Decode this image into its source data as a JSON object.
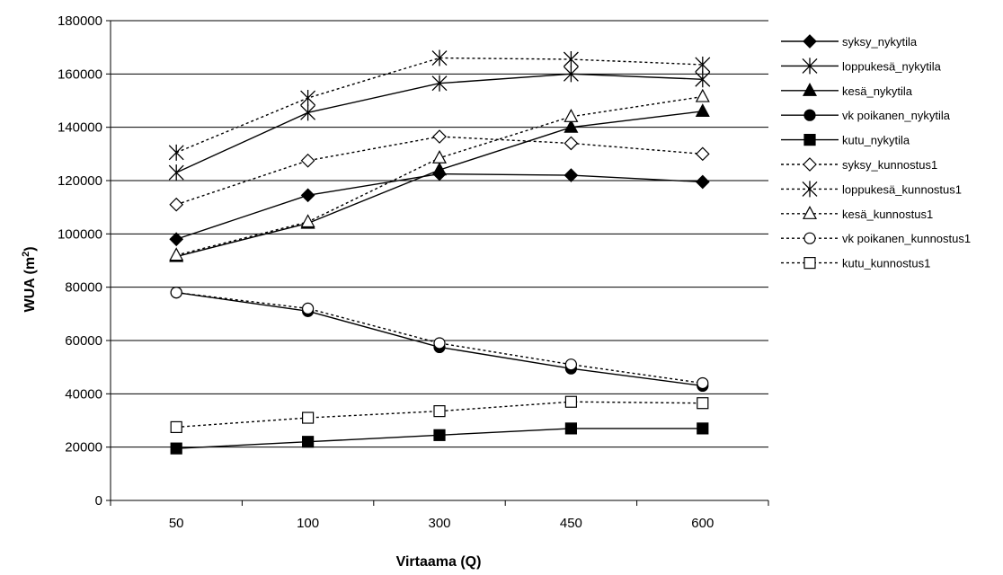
{
  "chart_data": {
    "type": "line",
    "xlabel": "Virtaama (Q)",
    "ylabel": "WUA (m",
    "ylabel_sup": "2",
    "ylabel_close": ")",
    "categories": [
      "50",
      "100",
      "300",
      "450",
      "600"
    ],
    "ylim": [
      0,
      180000
    ],
    "ytick_step": 20000,
    "yticks": [
      "0",
      "20000",
      "40000",
      "60000",
      "80000",
      "100000",
      "120000",
      "140000",
      "160000",
      "180000"
    ],
    "grid": "horizontal",
    "legend_position": "right",
    "series": [
      {
        "name": "syksy_nykytila",
        "marker": "diamond-filled",
        "dash": "solid",
        "values": [
          98000,
          114500,
          122500,
          122000,
          119500
        ]
      },
      {
        "name": "loppukesä_nykytila",
        "marker": "star",
        "dash": "solid",
        "values": [
          123000,
          145500,
          156500,
          160000,
          158000
        ]
      },
      {
        "name": "kesä_nykytila",
        "marker": "triangle-filled",
        "dash": "solid",
        "values": [
          91500,
          104000,
          124000,
          140000,
          146000
        ]
      },
      {
        "name": "vk poikanen_nykytila",
        "marker": "circle-filled",
        "dash": "solid",
        "values": [
          78000,
          71000,
          57500,
          49500,
          43000
        ]
      },
      {
        "name": "kutu_nykytila",
        "marker": "square-filled",
        "dash": "solid",
        "values": [
          19500,
          22000,
          24500,
          27000,
          27000
        ]
      },
      {
        "name": "syksy_kunnostus1",
        "marker": "diamond-open",
        "dash": "dotted",
        "values": [
          111000,
          127500,
          136500,
          134000,
          130000
        ]
      },
      {
        "name": "loppukesä_kunnostus1",
        "marker": "star",
        "dash": "dotted",
        "values": [
          130500,
          151000,
          166000,
          165500,
          163500
        ]
      },
      {
        "name": "kesä_kunnostus1",
        "marker": "triangle-open",
        "dash": "dotted",
        "values": [
          92000,
          104500,
          128500,
          144000,
          151500
        ]
      },
      {
        "name": "vk poikanen_kunnostus1",
        "marker": "circle-open",
        "dash": "dotted",
        "values": [
          78000,
          72000,
          59000,
          51000,
          44000
        ]
      },
      {
        "name": "kutu_kunnostus1",
        "marker": "square-open",
        "dash": "dotted",
        "values": [
          27500,
          31000,
          33500,
          37000,
          36500
        ]
      }
    ]
  }
}
